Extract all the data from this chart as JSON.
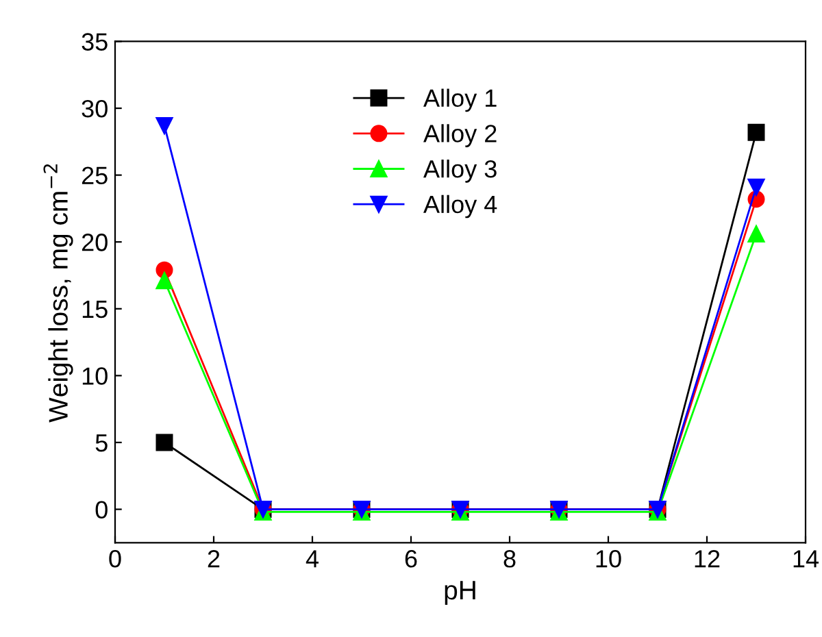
{
  "chart_data": {
    "type": "line",
    "xlabel": "pH",
    "ylabel": "Weight loss, mg cm$^{−2}$",
    "x": [
      1,
      3,
      5,
      7,
      9,
      11,
      13
    ],
    "series": [
      {
        "name": "Alloy 1",
        "color": "#000000",
        "marker": "square",
        "values": [
          5.0,
          0,
          0,
          0,
          0,
          0,
          28.2
        ]
      },
      {
        "name": "Alloy 2",
        "color": "#ff0000",
        "marker": "circle",
        "values": [
          17.9,
          0,
          0,
          0,
          0,
          0,
          23.2
        ]
      },
      {
        "name": "Alloy 3",
        "color": "#00ff00",
        "marker": "triangle",
        "values": [
          17.1,
          -0.2,
          -0.2,
          -0.2,
          -0.2,
          -0.2,
          20.6
        ]
      },
      {
        "name": "Alloy 4",
        "color": "#0000ff",
        "marker": "triangle_down",
        "values": [
          28.7,
          0,
          0,
          0,
          0,
          0,
          24.1
        ]
      }
    ],
    "xlim": [
      0,
      14
    ],
    "xticks": [
      0,
      2,
      4,
      6,
      8,
      10,
      12,
      14
    ],
    "ylim": [
      -2.5,
      35
    ],
    "yticks": [
      0,
      5,
      10,
      15,
      20,
      25,
      30,
      35
    ],
    "grid": false,
    "legend": "top",
    "line_style": "solid"
  }
}
